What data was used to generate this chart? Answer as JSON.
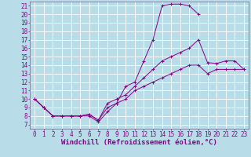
{
  "background_color": "#b8dde8",
  "line_color": "#880088",
  "grid_color": "#ffffff",
  "xlabel": "Windchill (Refroidissement éolien,°C)",
  "xlabel_fontsize": 6.5,
  "tick_fontsize": 5.5,
  "xlim": [
    -0.5,
    23.5
  ],
  "ylim": [
    6.5,
    21.5
  ],
  "xticks": [
    0,
    1,
    2,
    3,
    4,
    5,
    6,
    7,
    8,
    9,
    10,
    11,
    12,
    13,
    14,
    15,
    16,
    17,
    18,
    19,
    20,
    21,
    22,
    23
  ],
  "yticks": [
    7,
    8,
    9,
    10,
    11,
    12,
    13,
    14,
    15,
    16,
    17,
    18,
    19,
    20,
    21
  ],
  "curve1_x": [
    0,
    1,
    2,
    3,
    4,
    5,
    6,
    7,
    8,
    9,
    10,
    11,
    12,
    13,
    14,
    15,
    16,
    17,
    18
  ],
  "curve1_y": [
    10,
    9,
    8,
    8,
    8,
    8,
    8,
    7.3,
    8.5,
    9.5,
    11.5,
    12,
    14.5,
    17,
    21,
    21.2,
    21.2,
    21,
    20
  ],
  "curve2_x": [
    0,
    1,
    2,
    3,
    4,
    5,
    6,
    7,
    8,
    9,
    10,
    11,
    12,
    13,
    14,
    15,
    16,
    17,
    18,
    19,
    20,
    21,
    22,
    23
  ],
  "curve2_y": [
    10,
    9,
    8,
    8,
    8,
    8,
    8.2,
    7.5,
    9.5,
    10,
    10.5,
    11.5,
    12.5,
    13.5,
    14.5,
    15,
    15.5,
    16,
    17,
    14.3,
    14.2,
    14.5,
    14.5,
    13.5
  ],
  "curve3_x": [
    0,
    1,
    2,
    3,
    4,
    5,
    6,
    7,
    8,
    9,
    10,
    11,
    12,
    13,
    14,
    15,
    16,
    17,
    18,
    19,
    20,
    21,
    22,
    23
  ],
  "curve3_y": [
    10,
    9,
    8,
    8,
    8,
    8,
    8.2,
    7.5,
    9,
    9.5,
    10,
    11,
    11.5,
    12,
    12.5,
    13,
    13.5,
    14,
    14,
    13,
    13.5,
    13.5,
    13.5,
    13.5
  ]
}
